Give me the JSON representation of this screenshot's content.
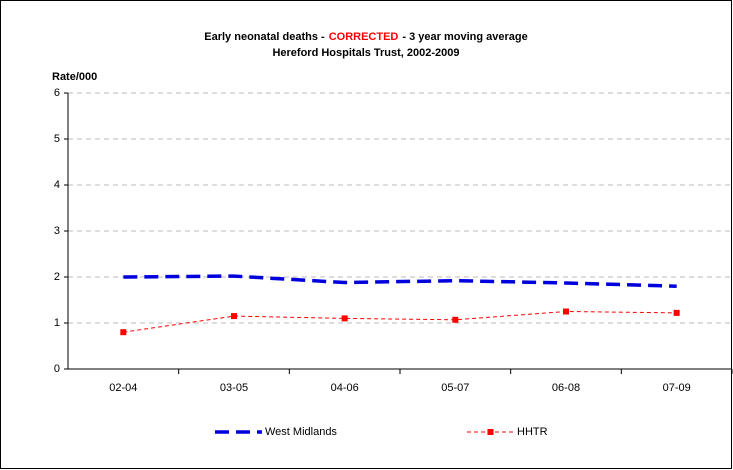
{
  "chart_data": {
    "type": "line",
    "title": [
      "Early neonatal deaths -",
      "CORRECTED",
      "- 3 year moving average"
    ],
    "title_colors": [
      "#000000",
      "#ff0000",
      "#000000"
    ],
    "subtitle": "Hereford Hospitals Trust, 2002-2009",
    "y_label": "Rate/000",
    "categories": [
      "02-04",
      "03-05",
      "04-06",
      "05-07",
      "06-08",
      "07-09"
    ],
    "series": [
      {
        "name": "West Midlands",
        "color": "#0000dd",
        "values": [
          2.0,
          2.02,
          1.88,
          1.92,
          1.87,
          1.8
        ]
      },
      {
        "name": "HHTR",
        "color": "#ff0000",
        "values": [
          0.8,
          1.15,
          1.1,
          1.07,
          1.25,
          1.22
        ]
      }
    ],
    "ylim": [
      0,
      6
    ],
    "yticks": [
      0,
      1,
      2,
      3,
      4,
      5,
      6
    ],
    "grid": true,
    "legend": "bottom"
  }
}
